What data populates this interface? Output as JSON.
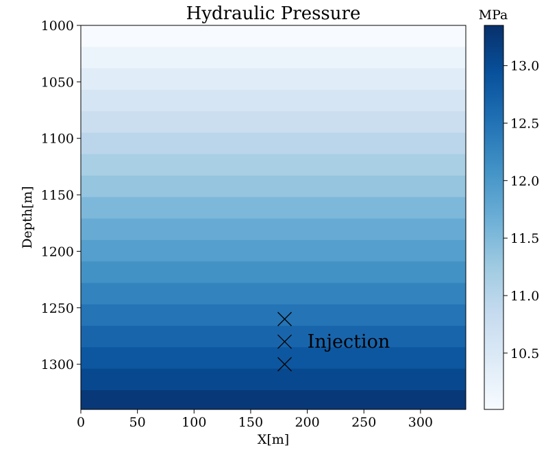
{
  "chart_data": {
    "type": "heatmap",
    "title": "Hydraulic Pressure",
    "xlabel": "X[m]",
    "ylabel": "Depth[m]",
    "xlim": [
      0,
      340
    ],
    "ylim": [
      1340,
      1000
    ],
    "x_ticks": [
      0,
      50,
      100,
      150,
      200,
      250,
      300
    ],
    "y_ticks": [
      1000,
      1050,
      1100,
      1150,
      1200,
      1250,
      1300
    ],
    "depth_edges": [
      1000,
      1019,
      1038,
      1057,
      1076,
      1095,
      1114,
      1133,
      1152,
      1171,
      1190,
      1209,
      1228,
      1247,
      1266,
      1285,
      1304,
      1323,
      1340
    ],
    "pressure_values": [
      10.01,
      10.2,
      10.39,
      10.58,
      10.77,
      10.96,
      11.15,
      11.34,
      11.53,
      11.72,
      11.91,
      12.1,
      12.29,
      12.48,
      12.67,
      12.86,
      13.05,
      13.25
    ],
    "colorbar": {
      "unit": "MPa",
      "min": 10.01,
      "max": 13.35,
      "ticks": [
        10.5,
        11.0,
        11.5,
        12.0,
        12.5,
        13.0
      ],
      "tick_labels": [
        "10.5",
        "11.0",
        "11.5",
        "12.0",
        "12.5",
        "13.0"
      ],
      "colormap": "Blues"
    },
    "markers": [
      {
        "x": 180,
        "y": 1260
      },
      {
        "x": 180,
        "y": 1280
      },
      {
        "x": 180,
        "y": 1300
      }
    ],
    "annotation": {
      "text": "Injection",
      "x": 200,
      "y": 1280
    }
  }
}
